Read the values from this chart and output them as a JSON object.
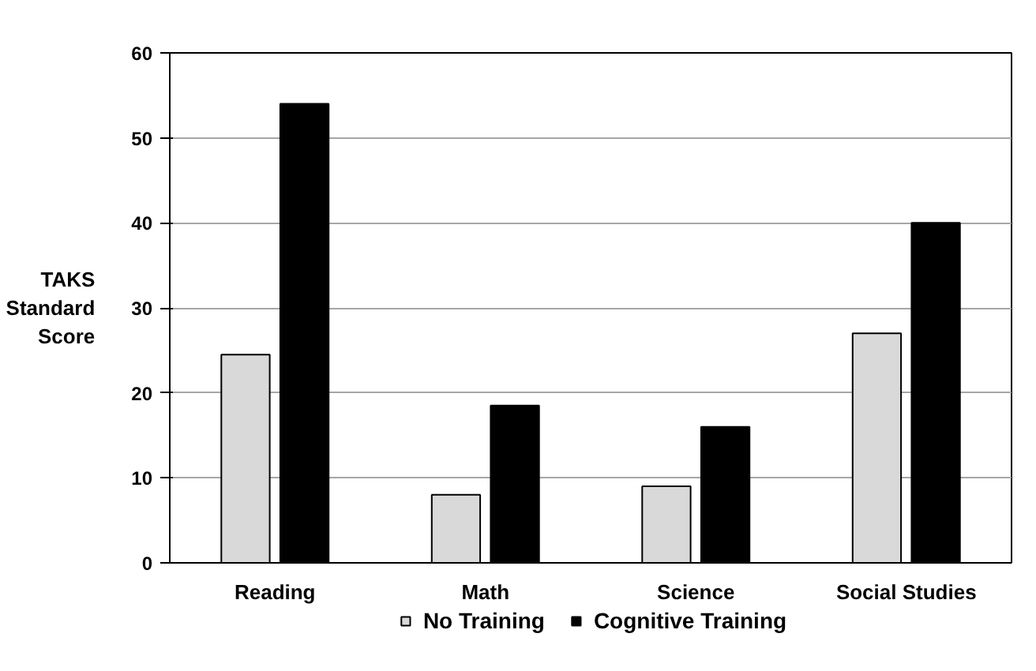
{
  "chart_data": {
    "type": "bar",
    "ylabel": "TAKS Standard Score",
    "categories": [
      "Reading",
      "Math",
      "Science",
      "Social Studies"
    ],
    "series": [
      {
        "name": "No Training",
        "color": "#d9d9d9",
        "values": [
          24.5,
          8,
          9,
          27
        ]
      },
      {
        "name": "Cognitive Training",
        "color": "#000000",
        "values": [
          54,
          18.5,
          16,
          40
        ]
      }
    ],
    "ylim": [
      0,
      60
    ],
    "yticks": [
      0,
      10,
      20,
      30,
      40,
      50,
      60
    ],
    "grid": "y",
    "legend": "bottom"
  }
}
